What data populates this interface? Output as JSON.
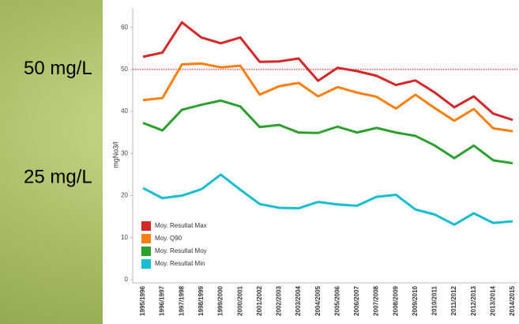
{
  "chart_data": {
    "type": "line",
    "y_label": "mgNo3/l",
    "annotations": [
      "50 mg/L",
      "25 mg/L"
    ],
    "reference_lines": [
      50
    ],
    "categories": [
      "1995/1996",
      "1996/1997",
      "1997/1998",
      "1998/1999",
      "1999/2000",
      "2000/2001",
      "2001/2002",
      "2002/2003",
      "2003/2004",
      "2004/2005",
      "2005/2006",
      "2006/2007",
      "2007/2008",
      "2008/2009",
      "2009/2010",
      "2010/2011",
      "2011/2012",
      "2012/2013",
      "2013/2014",
      "2014/2015"
    ],
    "series": [
      {
        "name": "Moy. Resultat Max",
        "color": "#d62728",
        "values": [
          53,
          54,
          61.2,
          57.6,
          56.2,
          57.6,
          51.8,
          51.9,
          52.6,
          47.3,
          50.4,
          49.6,
          48.5,
          46.3,
          47.4,
          44.5,
          41,
          43.6,
          39.5,
          38
        ]
      },
      {
        "name": "Moy. Q90",
        "color": "#ff7f0e",
        "values": [
          42.7,
          43.2,
          51.2,
          51.4,
          50.5,
          50.9,
          44,
          46,
          46.8,
          43.6,
          45.8,
          44.5,
          43.5,
          40.7,
          44,
          40.8,
          37.8,
          40.6,
          36,
          35.3
        ]
      },
      {
        "name": "Moy. Resultat Moy",
        "color": "#2ca02c",
        "values": [
          37.3,
          35.5,
          40.4,
          41.6,
          42.6,
          41.2,
          36.3,
          36.8,
          35,
          34.9,
          36.4,
          35,
          36.1,
          35,
          34.2,
          31.9,
          28.9,
          31.9,
          28.4,
          27.7
        ]
      },
      {
        "name": "Moy. Resultat Min",
        "color": "#17becf",
        "values": [
          21.8,
          19.4,
          20,
          21.5,
          25,
          21.4,
          18,
          17.1,
          17,
          18.5,
          17.9,
          17.6,
          19.7,
          20.2,
          16.7,
          15.5,
          13.1,
          15.8,
          13.5,
          13.9
        ]
      }
    ],
    "ylim": [
      0,
      62
    ],
    "yticks": [
      0,
      10,
      20,
      30,
      40,
      50,
      60
    ],
    "legend": "lower left",
    "grid": false
  }
}
